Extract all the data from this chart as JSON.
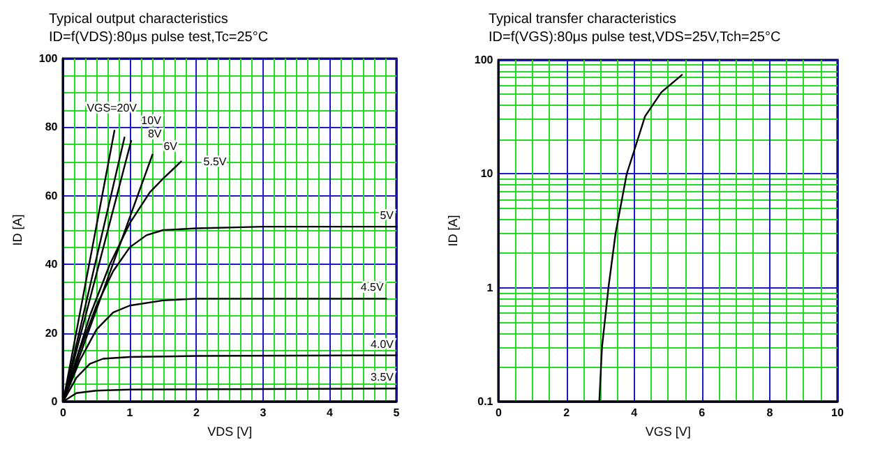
{
  "chart_data": [
    {
      "type": "line",
      "title": "Typical output characteristics",
      "subtitle": "ID=f(VDS):80μs pulse test,Tc=25°C",
      "xlabel": "VDS [V]",
      "ylabel": "ID [A]",
      "xlim": [
        0,
        5
      ],
      "xticks": [
        0,
        {
          "value": 0.1667,
          "label": null
        },
        {
          "value": 0.3333,
          "label": null
        },
        {
          "value": 0.5,
          "label": null
        },
        {
          "value": 0.6667,
          "label": null
        },
        {
          "value": 0.8333,
          "label": null
        },
        1,
        {
          "value": 1.1667,
          "label": null
        },
        {
          "value": 1.3333,
          "label": null
        },
        {
          "value": 1.5,
          "label": null
        },
        {
          "value": 1.6667,
          "label": null
        },
        {
          "value": 1.8333,
          "label": null
        },
        2,
        {
          "value": 2.1667,
          "label": null
        },
        {
          "value": 2.3333,
          "label": null
        },
        {
          "value": 2.5,
          "label": null
        },
        {
          "value": 2.6667,
          "label": null
        },
        {
          "value": 2.8333,
          "label": null
        },
        3,
        {
          "value": 3.1667,
          "label": null
        },
        {
          "value": 3.3333,
          "label": null
        },
        {
          "value": 3.5,
          "label": null
        },
        {
          "value": 3.6667,
          "label": null
        },
        {
          "value": 3.8333,
          "label": null
        },
        4,
        {
          "value": 4.1667,
          "label": null
        },
        {
          "value": 4.3333,
          "label": null
        },
        {
          "value": 4.5,
          "label": null
        },
        {
          "value": 4.6667,
          "label": null
        },
        {
          "value": 4.8333,
          "label": null
        },
        5
      ],
      "ylim": [
        0,
        100
      ],
      "yticks": [
        0,
        {
          "value": 5,
          "label": null
        },
        {
          "value": 10,
          "label": null
        },
        {
          "value": 15,
          "label": null
        },
        20,
        {
          "value": 25,
          "label": null
        },
        {
          "value": 30,
          "label": null
        },
        {
          "value": 35,
          "label": null
        },
        40,
        {
          "value": 45,
          "label": null
        },
        {
          "value": 50,
          "label": null
        },
        {
          "value": 55,
          "label": null
        },
        60,
        {
          "value": 65,
          "label": null
        },
        {
          "value": 70,
          "label": null
        },
        {
          "value": 75,
          "label": null
        },
        80,
        {
          "value": 85,
          "label": null
        },
        {
          "value": 90,
          "label": null
        },
        {
          "value": 95,
          "label": null
        },
        100
      ],
      "grid": true,
      "marker": "none",
      "line_style": "solid",
      "series": [
        {
          "name": "VGS=20V",
          "color": "#000000",
          "x": [
            0,
            0.77
          ],
          "values": [
            0,
            79
          ]
        },
        {
          "name": "10V",
          "color": "#000000",
          "x": [
            0,
            0.92
          ],
          "values": [
            0,
            77
          ]
        },
        {
          "name": "8V",
          "color": "#000000",
          "x": [
            0,
            1.02
          ],
          "values": [
            0,
            76
          ]
        },
        {
          "name": "6V",
          "color": "#000000",
          "x": [
            0,
            1.34
          ],
          "values": [
            0,
            72
          ]
        },
        {
          "name": "5.5V",
          "color": "#000000",
          "x": [
            0,
            0.4,
            0.7,
            1.0,
            1.3,
            1.5,
            1.77
          ],
          "values": [
            0,
            25,
            40,
            52,
            61,
            65,
            70
          ]
        },
        {
          "name": "5V",
          "color": "#000000",
          "x": [
            0,
            0.25,
            0.5,
            0.75,
            1,
            1.25,
            1.5,
            2,
            3,
            5
          ],
          "values": [
            0,
            15,
            28,
            38,
            45,
            48.5,
            50,
            50.5,
            51,
            51
          ]
        },
        {
          "name": "4.5V",
          "color": "#000000",
          "x": [
            0,
            0.25,
            0.5,
            0.75,
            1,
            1.5,
            2,
            4.85
          ],
          "values": [
            0,
            12,
            21,
            26,
            28,
            29.5,
            30,
            30
          ]
        },
        {
          "name": "4.0V",
          "color": "#000000",
          "x": [
            0,
            0.2,
            0.4,
            0.6,
            1,
            2,
            5
          ],
          "values": [
            0,
            7,
            11,
            12.5,
            13,
            13.3,
            13.5
          ]
        },
        {
          "name": "3.5V",
          "color": "#000000",
          "x": [
            0,
            0.2,
            0.5,
            1,
            5
          ],
          "values": [
            0,
            2.5,
            3.2,
            3.5,
            3.8
          ]
        }
      ]
    },
    {
      "type": "line",
      "title": "Typical transfer characteristics",
      "subtitle": "ID=f(VGS):80μs pulse test,VDS=25V,Tch=25°C",
      "xlabel": "VGS [V]",
      "ylabel": "ID [A]",
      "xlim": [
        0,
        10
      ],
      "xticks": [
        0,
        {
          "value": 0.5,
          "label": null
        },
        {
          "value": 1,
          "label": null
        },
        {
          "value": 1.5,
          "label": null
        },
        2,
        {
          "value": 2.5,
          "label": null
        },
        {
          "value": 3,
          "label": null
        },
        {
          "value": 3.5,
          "label": null
        },
        4,
        {
          "value": 4.5,
          "label": null
        },
        {
          "value": 5,
          "label": null
        },
        {
          "value": 5.5,
          "label": null
        },
        6,
        {
          "value": 6.5,
          "label": null
        },
        {
          "value": 7,
          "label": null
        },
        {
          "value": 7.5,
          "label": null
        },
        8,
        {
          "value": 8.5,
          "label": null
        },
        {
          "value": 9,
          "label": null
        },
        {
          "value": 9.5,
          "label": null
        },
        10
      ],
      "ylim": [
        0.1,
        100
      ],
      "yticks": [
        0.1,
        {
          "value": 0.2,
          "label": null
        },
        {
          "value": 0.3,
          "label": null
        },
        {
          "value": 0.4,
          "label": null
        },
        {
          "value": 0.5,
          "label": null
        },
        {
          "value": 0.6,
          "label": null
        },
        {
          "value": 0.7,
          "label": null
        },
        {
          "value": 0.8,
          "label": null
        },
        {
          "value": 0.9,
          "label": null
        },
        1,
        {
          "value": 2,
          "label": null
        },
        {
          "value": 3,
          "label": null
        },
        {
          "value": 4,
          "label": null
        },
        {
          "value": 5,
          "label": null
        },
        {
          "value": 6,
          "label": null
        },
        {
          "value": 7,
          "label": null
        },
        {
          "value": 8,
          "label": null
        },
        {
          "value": 9,
          "label": null
        },
        10,
        {
          "value": 20,
          "label": null
        },
        {
          "value": 30,
          "label": null
        },
        {
          "value": 40,
          "label": null
        },
        {
          "value": 50,
          "label": null
        },
        {
          "value": 60,
          "label": null
        },
        {
          "value": 70,
          "label": null
        },
        {
          "value": 80,
          "label": null
        },
        {
          "value": 90,
          "label": null
        },
        100
      ],
      "log": "y",
      "grid": true,
      "marker": "none",
      "line_style": "solid",
      "series": [
        {
          "color": "#000000",
          "x": [
            2.97,
            3.05,
            3.24,
            3.45,
            3.78,
            4.0,
            4.32,
            4.8,
            5.41
          ],
          "values": [
            0.1,
            0.3,
            1,
            3,
            10,
            16,
            32,
            52,
            74
          ]
        }
      ]
    }
  ]
}
